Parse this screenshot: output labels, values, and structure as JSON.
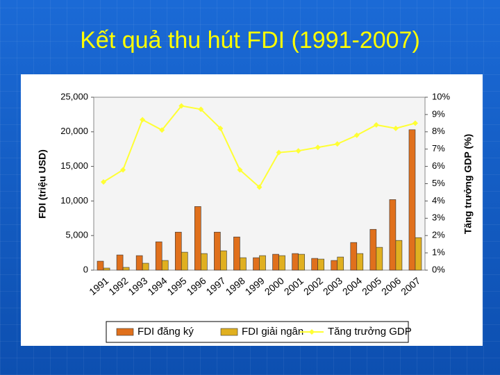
{
  "chart_data": {
    "type": "bar",
    "title": "Kết quả thu hút FDI (1991-2007)",
    "y_label": "FDI (triệu USD)",
    "y2_label": "Tăng trưởng GDP (%)",
    "categories": [
      "1991",
      "1992",
      "1993",
      "1994",
      "1995",
      "1996",
      "1997",
      "1998",
      "1999",
      "2000",
      "2001",
      "2002",
      "2003",
      "2004",
      "2005",
      "2006",
      "2007"
    ],
    "series": [
      {
        "name": "FDI đăng ký",
        "color": "#e0701c",
        "values": [
          1300,
          2200,
          2100,
          4100,
          5500,
          9200,
          5500,
          4800,
          1800,
          2300,
          2400,
          1700,
          1400,
          4000,
          5900,
          10200,
          20300
        ]
      },
      {
        "name": "FDI giải ngân",
        "color": "#e0b020",
        "values": [
          300,
          400,
          1000,
          1400,
          2600,
          2400,
          2800,
          1800,
          2100,
          2100,
          2300,
          1600,
          1900,
          2400,
          3300,
          4300,
          4700
        ]
      },
      {
        "name": "Tăng trưởng GDP",
        "color": "#ffff33",
        "type": "line",
        "axis": "y2",
        "values": [
          5.1,
          5.8,
          8.7,
          8.1,
          9.5,
          9.3,
          8.2,
          5.8,
          4.8,
          6.8,
          6.9,
          7.1,
          7.3,
          7.8,
          8.4,
          8.2,
          8.5
        ]
      }
    ],
    "ylim": [
      0,
      25000
    ],
    "yticks": [
      0,
      {
        "value": 5000,
        "label": "5,000"
      },
      {
        "value": 10000,
        "label": "10,000"
      },
      {
        "value": 15000,
        "label": "15,000"
      },
      {
        "value": 20000,
        "label": "20,000"
      },
      {
        "value": 25000,
        "label": "25,000"
      }
    ],
    "y2lim": [
      0,
      10
    ],
    "y2ticks": [
      {
        "value": 0,
        "label": "0%"
      },
      {
        "value": 1,
        "label": "1%"
      },
      {
        "value": 2,
        "label": "2%"
      },
      {
        "value": 3,
        "label": "3%"
      },
      {
        "value": 4,
        "label": "4%"
      },
      {
        "value": 5,
        "label": "5%"
      },
      {
        "value": 6,
        "label": "6%"
      },
      {
        "value": 7,
        "label": "7%"
      },
      {
        "value": 8,
        "label": "8%"
      },
      {
        "value": 9,
        "label": "9%"
      },
      {
        "value": 10,
        "label": "10%"
      }
    ],
    "legend": "bottom"
  }
}
